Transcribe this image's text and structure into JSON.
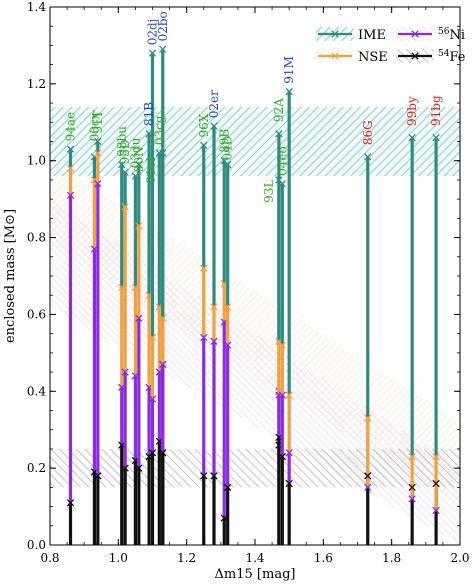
{
  "chart_data": {
    "type": "line",
    "xlabel": "Δm15 [mag]",
    "ylabel": "enclosed mass [M⊙]",
    "xlim": [
      0.8,
      2.0
    ],
    "ylim": [
      0.0,
      1.4
    ],
    "xticks": [
      "0.8",
      "1.0",
      "1.2",
      "1.4",
      "1.6",
      "1.8",
      "2.0"
    ],
    "yticks": [
      "0.0",
      "0.2",
      "0.4",
      "0.6",
      "0.8",
      "1.0",
      "1.2",
      "1.4"
    ],
    "colors": {
      "IME": "#2e8b82",
      "NSE": "#f0a040",
      "Ni56": "#8a2be2",
      "Fe54": "#111111",
      "label_green": "#33aa22",
      "label_blue": "#2244cc",
      "label_red": "#dd2222"
    },
    "legend": {
      "position": "top-right",
      "entries": [
        {
          "key": "IME",
          "label": "IME"
        },
        {
          "key": "NSE",
          "label": "NSE"
        },
        {
          "key": "Ni56",
          "label": "56Ni",
          "sup": "56",
          "base": "Ni"
        },
        {
          "key": "Fe54",
          "label": "54Fe",
          "sup": "54",
          "base": "Fe"
        }
      ]
    },
    "bands": [
      {
        "key": "IME",
        "type": "horizontal",
        "y_low": 0.96,
        "y_high": 1.14
      },
      {
        "key": "Fe54",
        "type": "horizontal",
        "y_low": 0.15,
        "y_high": 0.25
      },
      {
        "key": "NSE",
        "type": "sloped",
        "x": [
          0.8,
          2.0
        ],
        "y_low": [
          0.78,
          0.1
        ],
        "y_high": [
          1.0,
          0.32
        ]
      },
      {
        "key": "Ni56",
        "type": "sloped",
        "x": [
          0.8,
          2.0
        ],
        "y_low": [
          0.62,
          0.0
        ],
        "y_high": [
          0.9,
          0.2
        ]
      }
    ],
    "series": [
      {
        "label": "94ae",
        "dm15": 0.86,
        "fe54": 0.11,
        "ni56": 0.91,
        "nse": 0.98,
        "ime": 1.03,
        "color": "green",
        "label_anchor": 1.04
      },
      {
        "label": "00cx",
        "dm15": 0.93,
        "fe54": 0.19,
        "ni56": 0.77,
        "nse": 0.95,
        "ime": 1.01,
        "color": "green",
        "label_anchor": 1.04
      },
      {
        "label": "91T",
        "dm15": 0.94,
        "fe54": 0.18,
        "ni56": 0.94,
        "nse": 1.02,
        "ime": 1.05,
        "color": "green",
        "label_anchor": 1.06
      },
      {
        "label": "98bu",
        "dm15": 1.01,
        "fe54": 0.26,
        "ni56": 0.41,
        "nse": 0.67,
        "ime": 0.99,
        "color": "green",
        "label_anchor": 1.0
      },
      {
        "label": "95D",
        "dm15": 1.02,
        "fe54": 0.2,
        "ni56": 0.45,
        "nse": 0.88,
        "ime": 0.97,
        "color": "green",
        "label_anchor": 0.98
      },
      {
        "label": "03du",
        "dm15": 1.05,
        "fe54": 0.22,
        "ni56": 0.44,
        "nse": 0.67,
        "ime": 0.96,
        "color": "green",
        "label_anchor": 0.97
      },
      {
        "label": "90N",
        "dm15": 1.06,
        "fe54": 0.2,
        "ni56": 0.59,
        "nse": 0.83,
        "ime": 0.99,
        "color": "green",
        "label_anchor": 0.96
      },
      {
        "label": "81B",
        "dm15": 1.09,
        "fe54": 0.23,
        "ni56": 0.41,
        "nse": 0.65,
        "ime": 1.07,
        "color": "blue",
        "label_anchor": 1.08
      },
      {
        "label": "02dj",
        "dm15": 1.1,
        "fe54": 0.24,
        "ni56": 0.38,
        "nse": 0.54,
        "ime": 1.28,
        "color": "blue",
        "label_anchor": 1.29
      },
      {
        "label": "03cg",
        "dm15": 1.12,
        "fe54": 0.27,
        "ni56": 0.45,
        "nse": 0.62,
        "ime": 1.02,
        "color": "green",
        "label_anchor": 1.03
      },
      {
        "label": "02bo",
        "dm15": 1.13,
        "fe54": 0.24,
        "ni56": 0.47,
        "nse": 0.59,
        "ime": 1.29,
        "color": "blue",
        "label_anchor": 1.3
      },
      {
        "label": "01el",
        "dm15": 1.13,
        "fe54": 0.24,
        "ni56": 0.47,
        "nse": 0.59,
        "ime": 1.02,
        "color": "green",
        "label_anchor": 0.93,
        "label_offset": -12
      },
      {
        "label": "96X",
        "dm15": 1.25,
        "fe54": 0.18,
        "ni56": 0.54,
        "nse": 0.72,
        "ime": 1.04,
        "color": "green",
        "label_anchor": 1.05
      },
      {
        "label": "02er",
        "dm15": 1.28,
        "fe54": 0.18,
        "ni56": 0.53,
        "nse": 0.62,
        "ime": 1.09,
        "color": "blue",
        "label_anchor": 1.1
      },
      {
        "label": "89B",
        "dm15": 1.31,
        "fe54": 0.07,
        "ni56": 0.58,
        "nse": 0.68,
        "ime": 1.0,
        "color": "green",
        "label_anchor": 1.01
      },
      {
        "label": "04D",
        "dm15": 1.32,
        "fe54": 0.15,
        "ni56": 0.52,
        "nse": 0.62,
        "ime": 0.99,
        "color": "green",
        "label_anchor": 0.99
      },
      {
        "label": "92A",
        "dm15": 1.47,
        "fe54": 0.26,
        "ni56": 0.4,
        "nse": 0.53,
        "ime": 1.07,
        "color": "green",
        "label_anchor": 1.09
      },
      {
        "label": "93L",
        "dm15": 1.47,
        "fe54": 0.28,
        "ni56": 0.39,
        "nse": 0.53,
        "ime": 0.95,
        "color": "green",
        "label_anchor": 0.88,
        "label_offset": -10
      },
      {
        "label": "04eo",
        "dm15": 1.48,
        "fe54": 0.23,
        "ni56": 0.39,
        "nse": 0.52,
        "ime": 0.94,
        "color": "green",
        "label_anchor": 0.95
      },
      {
        "label": "91M",
        "dm15": 1.5,
        "fe54": 0.16,
        "ni56": 0.24,
        "nse": 0.39,
        "ime": 1.18,
        "color": "blue",
        "label_anchor": 1.19
      },
      {
        "label": "86G",
        "dm15": 1.73,
        "fe54": 0.18,
        "ni56": 0.15,
        "nse": 0.33,
        "ime": 1.01,
        "color": "red",
        "label_anchor": 1.03
      },
      {
        "label": "99by",
        "dm15": 1.86,
        "fe54": 0.15,
        "ni56": 0.12,
        "nse": 0.23,
        "ime": 1.06,
        "color": "red",
        "label_anchor": 1.08
      },
      {
        "label": "91bg",
        "dm15": 1.93,
        "fe54": 0.16,
        "ni56": 0.09,
        "nse": 0.23,
        "ime": 1.06,
        "color": "red",
        "label_anchor": 1.08
      }
    ]
  }
}
